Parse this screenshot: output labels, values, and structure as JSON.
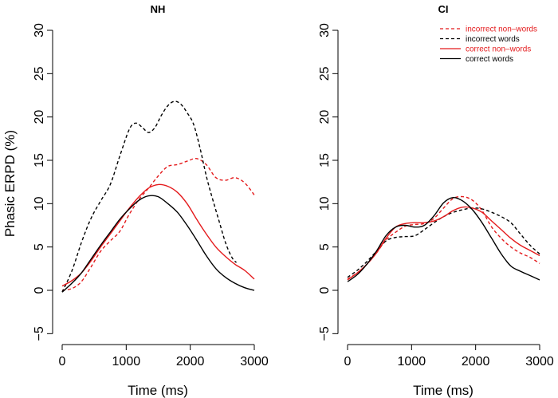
{
  "chart_data": [
    {
      "type": "line",
      "title": "NH",
      "xlabel": "Time (ms)",
      "ylabel": "Phasic ERPD (%)",
      "xlim": [
        0,
        3000
      ],
      "ylim": [
        -5,
        30
      ],
      "x_ticks": [
        "0",
        "1000",
        "2000",
        "3000"
      ],
      "y_ticks": [
        "−5",
        "0",
        "5",
        "10",
        "15",
        "20",
        "25",
        "30"
      ],
      "series": [
        {
          "name": "incorrect non–words",
          "color": "#e41a1c",
          "dash": true,
          "x": [
            0,
            150,
            300,
            450,
            600,
            750,
            900,
            1050,
            1200,
            1350,
            1500,
            1650,
            1800,
            1950,
            2100,
            2250,
            2400,
            2550,
            2700,
            2850,
            3000
          ],
          "y": [
            0,
            0.2,
            1,
            2.7,
            4.5,
            5.7,
            6.8,
            8.8,
            10.5,
            11.8,
            13.2,
            14.3,
            14.5,
            14.9,
            15.2,
            14.5,
            13,
            12.7,
            13,
            12.4,
            11
          ]
        },
        {
          "name": "incorrect words",
          "color": "#000000",
          "dash": true,
          "x": [
            0,
            150,
            300,
            450,
            600,
            750,
            900,
            1050,
            1150,
            1250,
            1350,
            1450,
            1550,
            1650,
            1750,
            1850,
            1950,
            2050,
            2150,
            2250,
            2350,
            2450,
            2550,
            2650,
            2720
          ],
          "y": [
            -0.2,
            2.2,
            5.5,
            8.3,
            10.3,
            12.2,
            15.5,
            18.6,
            19.3,
            18.8,
            18.2,
            18.8,
            20.2,
            21.3,
            21.8,
            21.5,
            20.5,
            19.2,
            16.5,
            13.2,
            10.5,
            8,
            5.5,
            3.8,
            3.2
          ]
        },
        {
          "name": "correct non–words",
          "color": "#e41a1c",
          "dash": false,
          "x": [
            0,
            150,
            300,
            450,
            600,
            750,
            900,
            1050,
            1200,
            1350,
            1500,
            1650,
            1800,
            1950,
            2100,
            2250,
            2400,
            2550,
            2700,
            2850,
            3000
          ],
          "y": [
            0.5,
            1.1,
            2,
            3.4,
            5,
            6.5,
            8,
            9.5,
            10.8,
            11.8,
            12.2,
            12,
            11.3,
            10,
            8.2,
            6.5,
            5,
            3.9,
            3,
            2.3,
            1.3
          ]
        },
        {
          "name": "correct words",
          "color": "#000000",
          "dash": false,
          "x": [
            0,
            150,
            300,
            450,
            600,
            750,
            900,
            1050,
            1200,
            1350,
            1500,
            1650,
            1800,
            1950,
            2100,
            2250,
            2400,
            2550,
            2700,
            2850,
            3000
          ],
          "y": [
            -0.2,
            0.8,
            2,
            3.6,
            5.2,
            6.7,
            8.2,
            9.4,
            10.4,
            10.9,
            10.8,
            10,
            9,
            7.5,
            5.8,
            4,
            2.5,
            1.5,
            0.8,
            0.3,
            0
          ]
        }
      ]
    },
    {
      "type": "line",
      "title": "CI",
      "xlabel": "Time (ms)",
      "ylabel": "",
      "xlim": [
        0,
        3000
      ],
      "ylim": [
        -5,
        30
      ],
      "x_ticks": [
        "0",
        "1000",
        "2000",
        "3000"
      ],
      "y_ticks": [
        "−5",
        "0",
        "5",
        "10",
        "15",
        "20",
        "25",
        "30"
      ],
      "legend": {
        "position": "top-right",
        "entries": [
          {
            "label": "incorrect non–words",
            "color": "#e41a1c",
            "dash": true,
            "text_color": "#e41a1c"
          },
          {
            "label": "incorrect words",
            "color": "#000000",
            "dash": true,
            "text_color": "#000000"
          },
          {
            "label": "correct non–words",
            "color": "#e41a1c",
            "dash": false,
            "text_color": "#e41a1c"
          },
          {
            "label": "correct words",
            "color": "#000000",
            "dash": false,
            "text_color": "#000000"
          }
        ]
      },
      "series": [
        {
          "name": "incorrect non–words",
          "color": "#e41a1c",
          "dash": true,
          "x": [
            0,
            150,
            300,
            450,
            600,
            750,
            900,
            1050,
            1200,
            1350,
            1500,
            1650,
            1800,
            1950,
            2100,
            2250,
            2400,
            2550,
            2700,
            2850,
            3000
          ],
          "y": [
            1.3,
            2,
            3,
            4.3,
            5.8,
            6.7,
            7.4,
            7.6,
            7.7,
            8.3,
            9.5,
            10.6,
            10.8,
            10.4,
            9.2,
            7.3,
            6,
            5,
            4.3,
            3.8,
            3.1
          ]
        },
        {
          "name": "incorrect words",
          "color": "#000000",
          "dash": true,
          "x": [
            0,
            150,
            300,
            450,
            600,
            750,
            900,
            1050,
            1200,
            1350,
            1500,
            1650,
            1800,
            1950,
            2100,
            2250,
            2400,
            2550,
            2700,
            2850,
            3000
          ],
          "y": [
            1.5,
            2.3,
            3.3,
            4.5,
            5.7,
            6.1,
            6.2,
            6.3,
            7,
            7.8,
            8.5,
            9,
            9.3,
            9.5,
            9.4,
            9,
            8.5,
            7.8,
            6.5,
            5.2,
            4.2
          ]
        },
        {
          "name": "correct non–words",
          "color": "#e41a1c",
          "dash": false,
          "x": [
            0,
            150,
            300,
            450,
            600,
            750,
            900,
            1050,
            1200,
            1350,
            1500,
            1650,
            1800,
            1950,
            2100,
            2250,
            2400,
            2550,
            2700,
            2850,
            3000
          ],
          "y": [
            1.2,
            2,
            3,
            4.3,
            6,
            7.3,
            7.7,
            7.8,
            7.8,
            8,
            8.5,
            9.2,
            9.6,
            9.5,
            9,
            8,
            7,
            6,
            5.2,
            4.6,
            4
          ]
        },
        {
          "name": "correct words",
          "color": "#000000",
          "dash": false,
          "x": [
            0,
            150,
            300,
            450,
            600,
            750,
            900,
            1050,
            1200,
            1350,
            1500,
            1650,
            1800,
            1950,
            2100,
            2250,
            2400,
            2550,
            2700,
            2850,
            3000
          ],
          "y": [
            1,
            1.8,
            3,
            4.5,
            6.3,
            7.3,
            7.5,
            7.3,
            7.5,
            8.6,
            10.1,
            10.7,
            10.3,
            9.3,
            7.8,
            6,
            4.2,
            2.8,
            2.2,
            1.7,
            1.2
          ]
        }
      ]
    }
  ]
}
